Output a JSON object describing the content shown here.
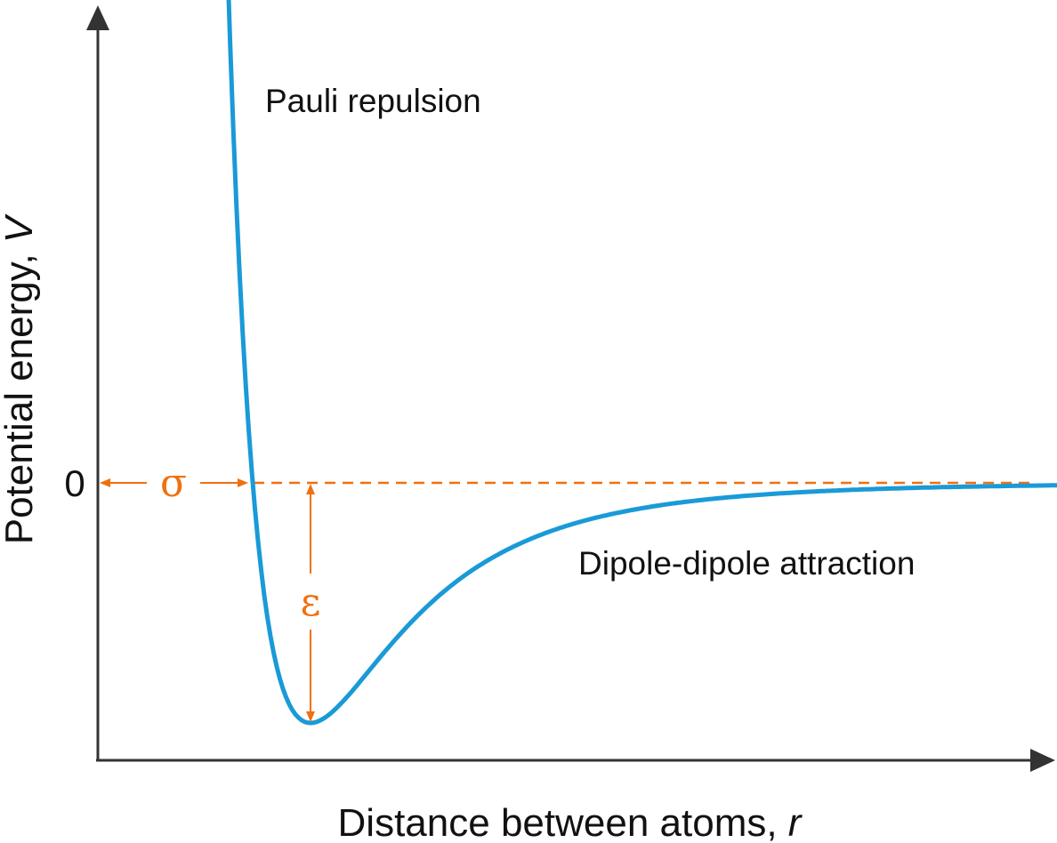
{
  "chart_data": {
    "type": "line",
    "title": "",
    "xlabel": "Distance between atoms, ",
    "xlabel_var": "r",
    "ylabel": "Potential energy, ",
    "ylabel_var": "V",
    "y_tick_label": "0",
    "series": [
      {
        "curve": "Lennard-Jones potential",
        "sigma": 1.0,
        "epsilon": 1.0,
        "x_range": [
          0.906,
          4.2
        ],
        "y_range": [
          -1.0,
          3.3
        ]
      }
    ],
    "annotations": {
      "repulsion": "Pauli repulsion",
      "attraction": "Dipole-dipole attraction",
      "sigma_symbol": "σ",
      "epsilon_symbol": "ε"
    },
    "grid": false
  },
  "colors": {
    "curve": "#1a9ad7",
    "annotation": "#f07010",
    "axis": "#333333"
  }
}
